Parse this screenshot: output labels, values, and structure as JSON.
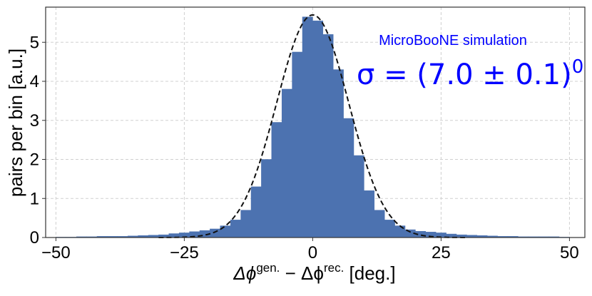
{
  "chart_data": {
    "type": "bar",
    "xlabel_parts": [
      "Δϕ",
      "gen.",
      " − Δϕ",
      "rec.",
      " [deg.]"
    ],
    "ylabel": "pairs per bin [a.u.]",
    "xlim": [
      -52,
      53
    ],
    "ylim": [
      0,
      5.9
    ],
    "xticks": [
      -50,
      -25,
      0,
      25,
      50
    ],
    "yticks": [
      0,
      1,
      2,
      3,
      4,
      5
    ],
    "grid": true,
    "bin_width": 2,
    "bins_left": [
      -50,
      -48,
      -46,
      -44,
      -42,
      -40,
      -38,
      -36,
      -34,
      -32,
      -30,
      -28,
      -26,
      -24,
      -22,
      -20,
      -18,
      -16,
      -14,
      -12,
      -10,
      -8,
      -6,
      -4,
      -2,
      0,
      2,
      4,
      6,
      8,
      10,
      12,
      14,
      16,
      18,
      20,
      22,
      24,
      26,
      28,
      30,
      32,
      34,
      36,
      38,
      40,
      42,
      44,
      46,
      48
    ],
    "values": [
      0.01,
      0.01,
      0.02,
      0.02,
      0.03,
      0.03,
      0.03,
      0.04,
      0.05,
      0.06,
      0.07,
      0.1,
      0.12,
      0.15,
      0.18,
      0.22,
      0.3,
      0.45,
      0.7,
      1.3,
      2.0,
      2.95,
      3.8,
      4.75,
      5.65,
      5.55,
      5.2,
      4.3,
      3.05,
      2.1,
      1.2,
      0.7,
      0.45,
      0.3,
      0.2,
      0.16,
      0.14,
      0.12,
      0.09,
      0.07,
      0.06,
      0.05,
      0.04,
      0.03,
      0.03,
      0.02,
      0.02,
      0.02,
      0.02,
      0.01
    ],
    "fit": {
      "type": "gaussian",
      "amplitude": 5.7,
      "mean": 0.0,
      "sigma": 7.0,
      "style": "dashed"
    },
    "bar_color": "#4c72b0",
    "fit_color": "#111111",
    "annotations": {
      "label": "MicroBooNE simulation",
      "sigma_text": "σ = (7.0 ± 0.1)",
      "sigma_sup": "0",
      "color": "#0000ff"
    }
  }
}
